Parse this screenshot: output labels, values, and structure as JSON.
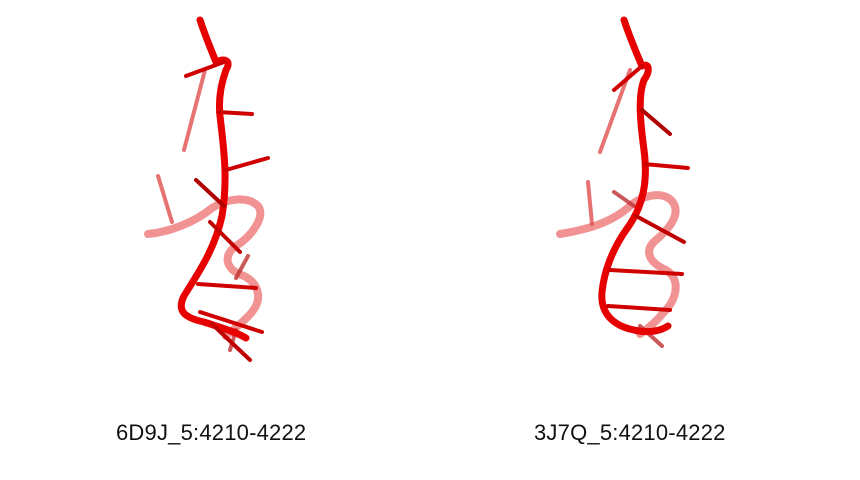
{
  "panels": [
    {
      "label": "6D9J_5:4210-4222",
      "structure_type": "rna-backbone-cartoon",
      "color": "#e00000"
    },
    {
      "label": "3J7Q_5:4210-4222",
      "structure_type": "rna-backbone-cartoon",
      "color": "#e00000"
    }
  ]
}
